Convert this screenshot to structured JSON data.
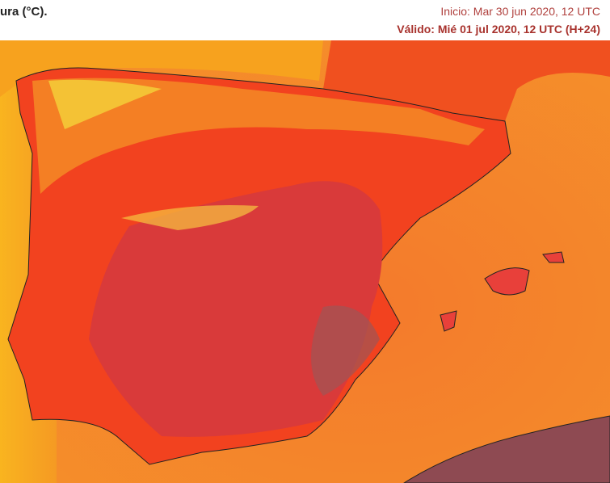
{
  "header": {
    "title": "ura (°C).",
    "issued": "Inicio: Mar 30 jun 2020, 12 UTC",
    "valid": "Válido: Mié 01 jul 2020, 12 UTC (H+24)"
  }
}
